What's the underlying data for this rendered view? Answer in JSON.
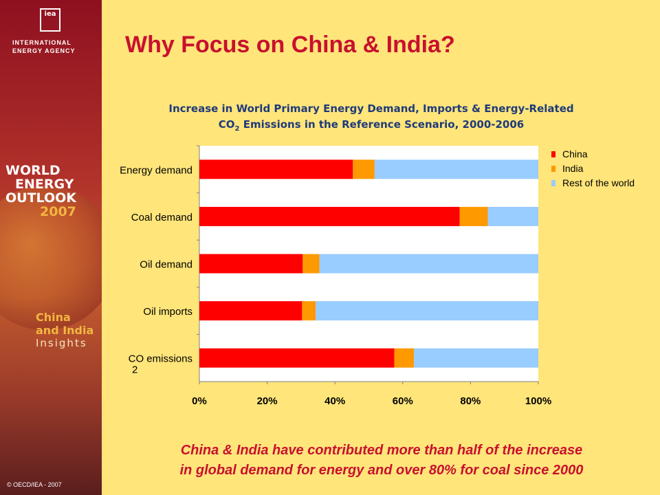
{
  "slide": {
    "title": "Why Focus on China & India?",
    "caption_line1": "China & India have contributed more than half of the increase",
    "caption_line2": "in global demand for energy and over 80% for coal since 2000",
    "copyright": "© OECD/IEA - 2007"
  },
  "sidebar": {
    "logo_text": "iea",
    "agency_line1": "INTERNATIONAL",
    "agency_line2": "ENERGY AGENCY",
    "weo_line1": "WORLD",
    "weo_line2": "ENERGY",
    "weo_line3": "OUTLOOK",
    "weo_year": "2007",
    "ci_line1": "China",
    "ci_line2": "and India",
    "ci_line3": "Insights"
  },
  "chart_title": {
    "line1": "Increase in World Primary Energy Demand, Imports & Energy-Related",
    "line2_a": "CO",
    "line2_sub": "2",
    "line2_b": " Emissions in the Reference Scenario, 2000-2006"
  },
  "chart_data": {
    "type": "bar",
    "orientation": "horizontal",
    "stacked": true,
    "categories": [
      "Energy demand",
      "Coal demand",
      "Oil demand",
      "Oil imports",
      "CO2 emissions"
    ],
    "category_display": [
      {
        "main": "Energy demand",
        "sub": ""
      },
      {
        "main": "Coal demand",
        "sub": ""
      },
      {
        "main": "Oil demand",
        "sub": ""
      },
      {
        "main": "Oil imports",
        "sub": ""
      },
      {
        "main": "CO  emissions",
        "sub": "2"
      }
    ],
    "series": [
      {
        "name": "China",
        "color": "#FF0000",
        "values": [
          45.3,
          76.8,
          30.5,
          30.3,
          57.5
        ]
      },
      {
        "name": "India",
        "color": "#FF9900",
        "values": [
          6.4,
          8.3,
          4.9,
          4.0,
          5.8
        ]
      },
      {
        "name": "Rest of the world",
        "color": "#99CCFF",
        "values": [
          48.3,
          14.9,
          64.6,
          65.7,
          36.7
        ]
      }
    ],
    "xlim": [
      0,
      100
    ],
    "x_ticks": [
      "0%",
      "20%",
      "40%",
      "60%",
      "80%",
      "100%"
    ],
    "legend_position": "right",
    "grid": false
  }
}
